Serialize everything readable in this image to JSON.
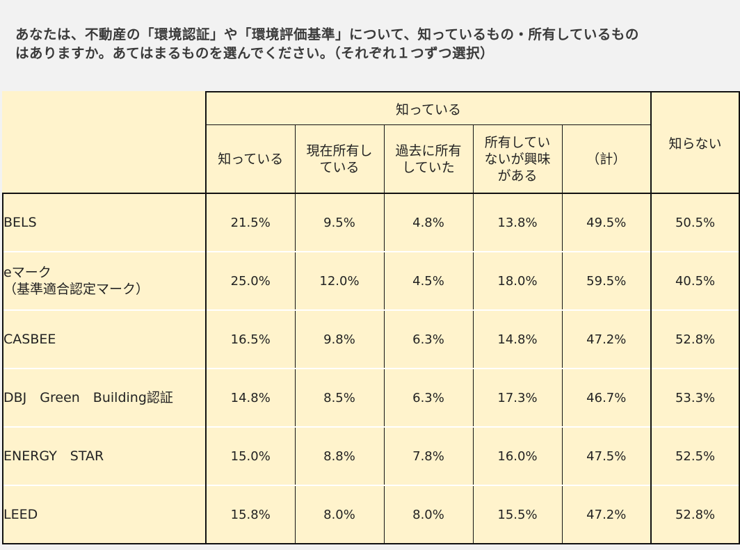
{
  "question": {
    "line1": "あなたは、不動産の「環境認証」や「環境評価基準」について、知っているもの・所有しているもの",
    "line2": "はありますか。あてはまるものを選んでください。（それぞれ１つずつ選択）"
  },
  "table": {
    "group_header": "知っている",
    "unknown_header": "知らない",
    "columns": [
      {
        "lines": [
          "知っている"
        ]
      },
      {
        "lines": [
          "現在所有し",
          "ている"
        ]
      },
      {
        "lines": [
          "過去に所有",
          "していた"
        ]
      },
      {
        "lines": [
          "所有してい",
          "ないが興味",
          "がある"
        ]
      },
      {
        "lines": [
          "（計）"
        ]
      }
    ],
    "rows": [
      {
        "label": [
          "BELS"
        ],
        "values": [
          "21.5%",
          "9.5%",
          "4.8%",
          "13.8%",
          "49.5%",
          "50.5%"
        ]
      },
      {
        "label": [
          "eマーク",
          "（基準適合認定マーク）"
        ],
        "values": [
          "25.0%",
          "12.0%",
          "4.5%",
          "18.0%",
          "59.5%",
          "40.5%"
        ]
      },
      {
        "label": [
          "CASBEE"
        ],
        "values": [
          "16.5%",
          "9.8%",
          "6.3%",
          "14.8%",
          "47.2%",
          "52.8%"
        ]
      },
      {
        "label": [
          "DBJ　Green　Building認証"
        ],
        "values": [
          "14.8%",
          "8.5%",
          "6.3%",
          "17.3%",
          "46.7%",
          "53.3%"
        ]
      },
      {
        "label": [
          "ENERGY　STAR"
        ],
        "values": [
          "15.0%",
          "8.8%",
          "7.8%",
          "16.0%",
          "47.5%",
          "52.5%"
        ]
      },
      {
        "label": [
          "LEED"
        ],
        "values": [
          "15.8%",
          "8.0%",
          "8.0%",
          "15.5%",
          "47.2%",
          "52.8%"
        ]
      }
    ]
  },
  "colors": {
    "table_bg": "#fff3cc",
    "page_bg": "#f2f2f2",
    "border": "#111111"
  }
}
